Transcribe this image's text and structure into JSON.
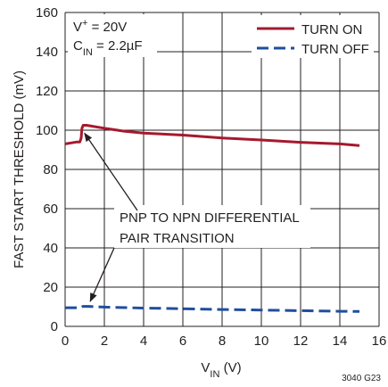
{
  "chart_data": {
    "type": "line",
    "xlabel": {
      "main": "V",
      "sub": "IN",
      "unit": " (V)"
    },
    "ylabel": "FAST START THRESHOLD (mV)",
    "xlim": [
      0,
      16
    ],
    "ylim": [
      0,
      160
    ],
    "xticks": [
      0,
      2,
      4,
      6,
      8,
      10,
      12,
      14,
      16
    ],
    "yticks": [
      0,
      20,
      40,
      60,
      80,
      100,
      120,
      140,
      160
    ],
    "grid": true,
    "conditions": [
      {
        "main": "V",
        "sup": "+",
        "rest": " = 20V"
      },
      {
        "main": "C",
        "sub": "IN",
        "rest": " = 2.2µF"
      }
    ],
    "legend_position": "top-right",
    "series": [
      {
        "name": "TURN ON",
        "color": "#a6192e",
        "dash": "solid",
        "points": [
          [
            0,
            93
          ],
          [
            0.3,
            93.5
          ],
          [
            0.6,
            94
          ],
          [
            0.75,
            94
          ],
          [
            0.82,
            96
          ],
          [
            0.86,
            101
          ],
          [
            0.92,
            102.5
          ],
          [
            1.1,
            102.5
          ],
          [
            1.4,
            102
          ],
          [
            2,
            101
          ],
          [
            3,
            99.5
          ],
          [
            4,
            98.5
          ],
          [
            6,
            97.5
          ],
          [
            8,
            96
          ],
          [
            10,
            95
          ],
          [
            12,
            93.8
          ],
          [
            14,
            93
          ],
          [
            15,
            92.2
          ]
        ]
      },
      {
        "name": "TURN OFF",
        "color": "#1f4e9e",
        "dash": "dashed",
        "points": [
          [
            0,
            9.5
          ],
          [
            0.8,
            9.5
          ],
          [
            0.9,
            10.2
          ],
          [
            1.2,
            10.2
          ],
          [
            2,
            9.8
          ],
          [
            4,
            9.3
          ],
          [
            6,
            9
          ],
          [
            8,
            8.6
          ],
          [
            10,
            8.3
          ],
          [
            12,
            8
          ],
          [
            14,
            7.7
          ],
          [
            15,
            7.6
          ]
        ]
      }
    ],
    "annotation": {
      "lines": [
        "PNP TO NPN DIFFERENTIAL",
        "PAIR TRANSITION"
      ],
      "arrow_targets": [
        [
          0.9,
          103
        ],
        [
          1.1,
          10.5
        ]
      ]
    },
    "figure_id": "3040 G23"
  }
}
